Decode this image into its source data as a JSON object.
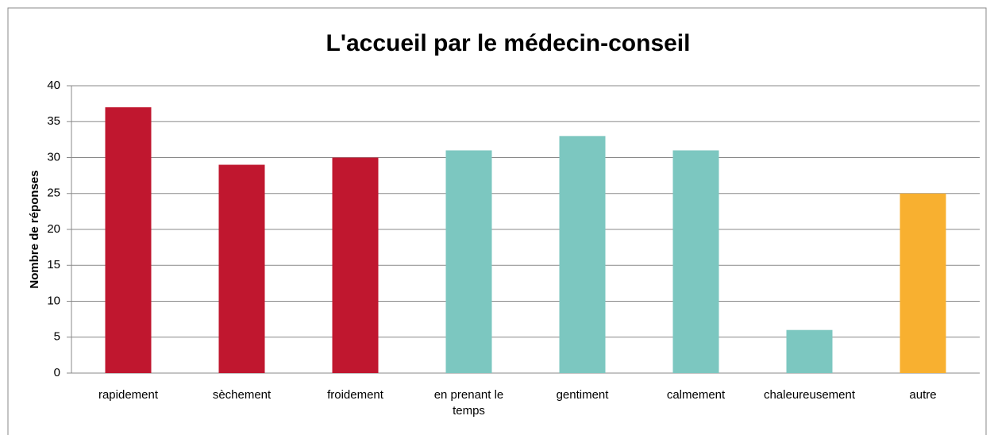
{
  "chart_data": {
    "type": "bar",
    "title": "L'accueil par le médecin-conseil",
    "y_label": "Nombre de réponses",
    "categories": [
      "rapidement",
      "sèchement",
      "froidement",
      "en prenant le temps",
      "gentiment",
      "calmement",
      "chaleureusement",
      "autre"
    ],
    "values": [
      37,
      29,
      30,
      31,
      33,
      31,
      6,
      25
    ],
    "colors": [
      "#c0172f",
      "#c0172f",
      "#c0172f",
      "#7cc7c0",
      "#7cc7c0",
      "#7cc7c0",
      "#7cc7c0",
      "#f8b030"
    ],
    "ylim": [
      0,
      40
    ],
    "yticks": [
      0,
      5,
      10,
      15,
      20,
      25,
      30,
      35,
      40
    ],
    "grid": true
  }
}
